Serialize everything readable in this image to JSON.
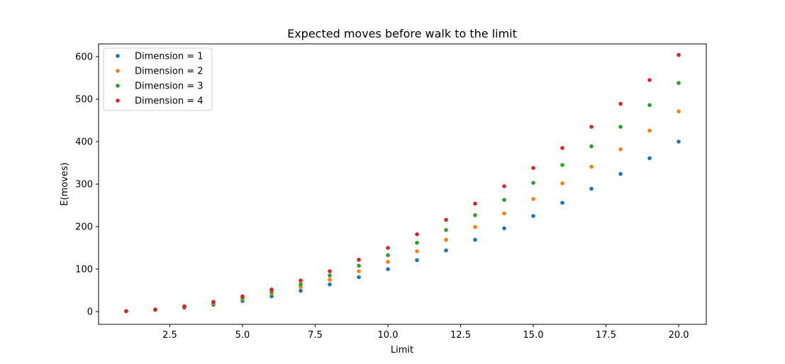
{
  "chart_data": {
    "type": "scatter",
    "title": "Expected moves before walk to the limit",
    "xlabel": "Limit",
    "ylabel": "E(moves)",
    "xlim": [
      0.05,
      20.95
    ],
    "ylim": [
      -30,
      630
    ],
    "xticks": [
      2.5,
      5.0,
      7.5,
      10.0,
      12.5,
      15.0,
      17.5,
      20.0
    ],
    "xtick_labels": [
      "2.5",
      "5.0",
      "7.5",
      "10.0",
      "12.5",
      "15.0",
      "17.5",
      "20.0"
    ],
    "yticks": [
      0,
      100,
      200,
      300,
      400,
      500,
      600
    ],
    "ytick_labels": [
      "0",
      "100",
      "200",
      "300",
      "400",
      "500",
      "600"
    ],
    "grid": false,
    "legend_position": "top-left",
    "x": [
      1,
      2,
      3,
      4,
      5,
      6,
      7,
      8,
      9,
      10,
      11,
      12,
      13,
      14,
      15,
      16,
      17,
      18,
      19,
      20
    ],
    "series": [
      {
        "name": "Dimension = 1",
        "color": "#1f77b4",
        "values": [
          1,
          4,
          9,
          16,
          25,
          36,
          49,
          64,
          81,
          100,
          121,
          144,
          169,
          196,
          225,
          256,
          289,
          324,
          361,
          400
        ]
      },
      {
        "name": "Dimension = 2",
        "color": "#ff7f0e",
        "values": [
          1,
          4.5,
          10.5,
          19,
          30,
          43,
          58,
          75,
          95,
          117,
          142,
          169,
          199,
          231,
          265,
          302,
          341,
          382,
          426,
          471
        ]
      },
      {
        "name": "Dimension = 3",
        "color": "#2ca02c",
        "values": [
          1,
          4.8,
          11.6,
          21,
          33,
          47,
          64,
          85,
          108,
          133,
          162,
          192,
          227,
          263,
          303,
          345,
          389,
          435,
          486,
          538
        ]
      },
      {
        "name": "Dimension = 4",
        "color": "#d62728",
        "values": [
          1,
          5,
          12.5,
          23,
          36,
          52,
          73,
          95,
          122,
          150,
          182,
          216,
          254,
          295,
          338,
          385,
          435,
          489,
          545,
          604
        ]
      }
    ]
  }
}
